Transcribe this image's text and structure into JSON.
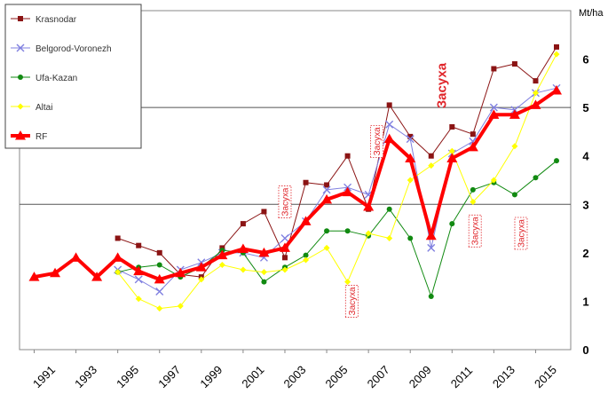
{
  "chart_data": {
    "type": "line",
    "x": [
      1991,
      1992,
      1993,
      1994,
      1995,
      1996,
      1997,
      1998,
      1999,
      2000,
      2001,
      2002,
      2003,
      2004,
      2005,
      2006,
      2007,
      2008,
      2009,
      2010,
      2011,
      2012,
      2013,
      2014,
      2015,
      2016
    ],
    "xticks": [
      1991,
      1993,
      1995,
      1997,
      1999,
      2001,
      2003,
      2005,
      2007,
      2009,
      2011,
      2013,
      2015
    ],
    "xlim": [
      1991,
      2016
    ],
    "ylim": [
      0,
      7
    ],
    "yticks": [
      0,
      1,
      2,
      3,
      4,
      5,
      6
    ],
    "unit_label": "Mt/ha",
    "grid_lines_y": [
      3,
      5
    ],
    "legend_position": "top-left",
    "series": [
      {
        "name": "Krasnodar",
        "color": "#8b1414",
        "marker": "square",
        "width": 1,
        "values": [
          null,
          null,
          null,
          null,
          2.3,
          2.15,
          2.0,
          1.55,
          1.5,
          2.1,
          2.6,
          2.85,
          1.9,
          3.45,
          3.4,
          4.0,
          2.9,
          5.05,
          4.4,
          4.0,
          4.6,
          4.45,
          5.8,
          5.9,
          5.55,
          6.25
        ]
      },
      {
        "name": "Belgorod-Voronezh",
        "color": "#8080e0",
        "marker": "x",
        "width": 1,
        "values": [
          null,
          null,
          null,
          null,
          1.65,
          1.45,
          1.2,
          1.65,
          1.8,
          2.0,
          2.0,
          1.9,
          2.3,
          2.65,
          3.3,
          3.35,
          3.2,
          4.65,
          4.35,
          2.1,
          4.05,
          4.3,
          5.0,
          4.95,
          5.3,
          5.4
        ]
      },
      {
        "name": "Ufa-Kazan",
        "color": "#118a11",
        "marker": "circle",
        "width": 1,
        "values": [
          null,
          null,
          null,
          null,
          1.6,
          1.7,
          1.75,
          1.5,
          1.7,
          2.05,
          2.0,
          1.4,
          1.7,
          1.95,
          2.45,
          2.45,
          2.35,
          2.9,
          2.3,
          1.1,
          2.6,
          3.3,
          3.45,
          3.2,
          3.55,
          3.9
        ]
      },
      {
        "name": "Altai",
        "color": "#ffff00",
        "marker": "diamond",
        "width": 1,
        "values": [
          null,
          null,
          null,
          null,
          1.6,
          1.05,
          0.85,
          0.9,
          1.45,
          1.75,
          1.65,
          1.6,
          1.65,
          1.85,
          2.1,
          1.4,
          2.4,
          2.3,
          3.5,
          3.8,
          4.1,
          3.05,
          3.5,
          4.2,
          5.3,
          6.1
        ]
      },
      {
        "name": "RF",
        "color": "#ff0000",
        "marker": "triangle",
        "width": 4,
        "values": [
          1.5,
          1.58,
          1.9,
          1.5,
          1.9,
          1.62,
          1.45,
          1.58,
          1.7,
          1.95,
          2.08,
          2.0,
          2.1,
          2.65,
          3.1,
          3.25,
          2.95,
          4.35,
          3.95,
          2.35,
          3.95,
          4.18,
          4.85,
          4.85,
          5.05,
          5.35
        ]
      }
    ],
    "annotations": [
      {
        "text": "Засуха",
        "x": 2003,
        "y": 3.05,
        "style": "small"
      },
      {
        "text": "Засуха",
        "x": 2006.2,
        "y": 1.0,
        "style": "small"
      },
      {
        "text": "Засуха",
        "x": 2007.4,
        "y": 4.3,
        "style": "small"
      },
      {
        "text": "Засуха",
        "x": 2010.5,
        "y": 5.45,
        "style": "big"
      },
      {
        "text": "Засуха",
        "x": 2012.1,
        "y": 2.45,
        "style": "small"
      },
      {
        "text": "Засуха",
        "x": 2014.3,
        "y": 2.4,
        "style": "small"
      }
    ]
  }
}
